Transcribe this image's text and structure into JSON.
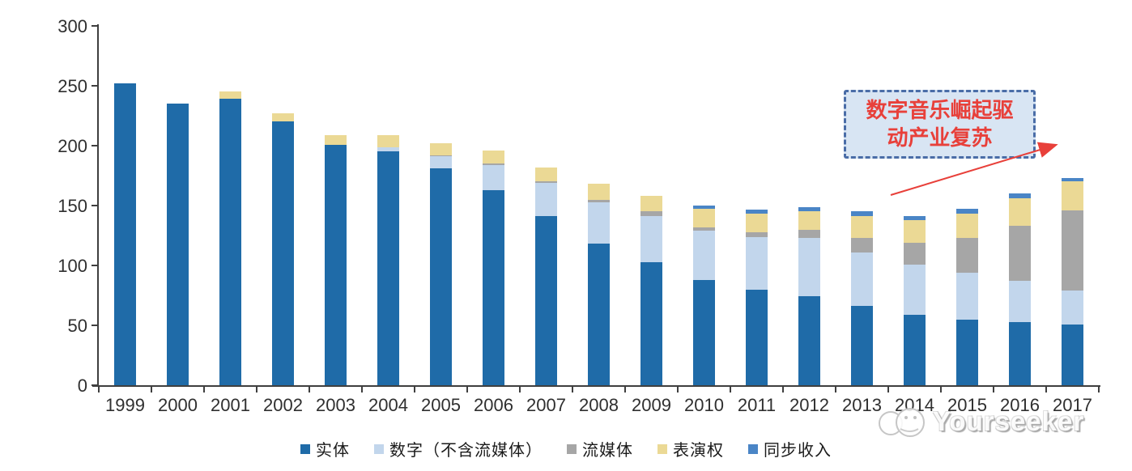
{
  "chart_data": {
    "type": "bar",
    "stacked": true,
    "title": "",
    "xlabel": "",
    "ylabel": "",
    "ylim": [
      0,
      300
    ],
    "y_ticks": [
      0,
      50,
      100,
      150,
      200,
      250,
      300
    ],
    "grid": false,
    "legend_position": "bottom",
    "categories": [
      "1999",
      "2000",
      "2001",
      "2002",
      "2003",
      "2004",
      "2005",
      "2006",
      "2007",
      "2008",
      "2009",
      "2010",
      "2011",
      "2012",
      "2013",
      "2014",
      "2015",
      "2016",
      "2017"
    ],
    "series": [
      {
        "name": "实体",
        "color": "#1f6ba8",
        "values": [
          252,
          235,
          239,
          220,
          201,
          195,
          181,
          163,
          141,
          118,
          103,
          88,
          80,
          74,
          66,
          59,
          55,
          53,
          51
        ]
      },
      {
        "name": "数字（不含流媒体）",
        "color": "#c2d6ec",
        "values": [
          0,
          0,
          0,
          0,
          0,
          4,
          10,
          21,
          28,
          35,
          38,
          41,
          44,
          49,
          45,
          42,
          39,
          34,
          28
        ]
      },
      {
        "name": "流媒体",
        "color": "#a6a6a6",
        "values": [
          0,
          0,
          0,
          0,
          0,
          0,
          1,
          1,
          1,
          2,
          4,
          3,
          4,
          7,
          12,
          18,
          29,
          46,
          67
        ]
      },
      {
        "name": "表演权",
        "color": "#ebd995",
        "values": [
          0,
          0,
          6,
          7,
          8,
          10,
          10,
          11,
          12,
          13,
          13,
          15,
          15,
          15,
          18,
          19,
          20,
          23,
          24
        ]
      },
      {
        "name": "同步收入",
        "color": "#4a85c6",
        "values": [
          0,
          0,
          0,
          0,
          0,
          0,
          0,
          0,
          0,
          0,
          0,
          3,
          4,
          4,
          4,
          3,
          4,
          4,
          3
        ]
      }
    ]
  },
  "annotation": {
    "line1": "数字音乐崛起驱",
    "line2": "动产业复苏",
    "text_color": "#e8403a",
    "border_color": "#4a6da7",
    "background_color": "#d8e5f3",
    "arrow_color": "#e8403a"
  },
  "watermark": {
    "text": "Yourseeker"
  }
}
